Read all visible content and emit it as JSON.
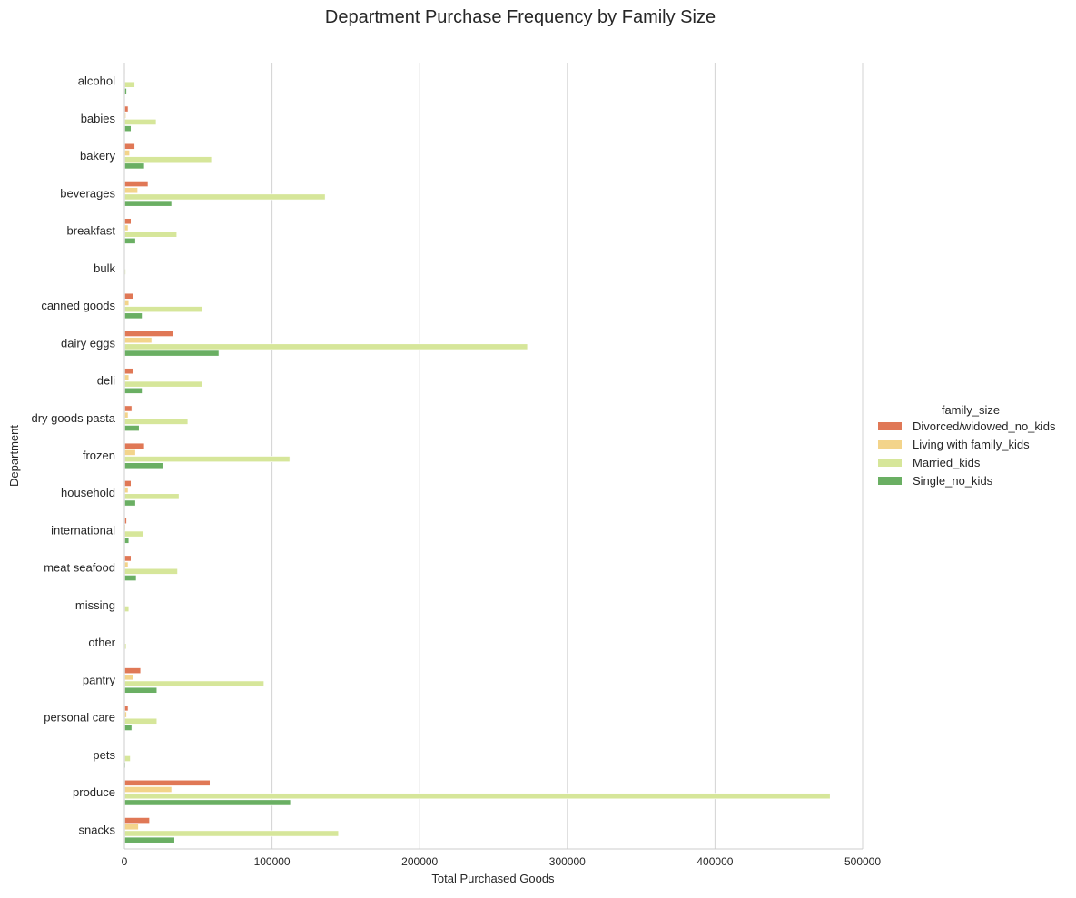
{
  "chart_data": {
    "type": "bar",
    "orientation": "horizontal",
    "title": "Department Purchase Frequency by Family Size",
    "xlabel": "Total Purchased Goods",
    "ylabel": "Department",
    "xlim": [
      0,
      500000
    ],
    "xticks": [
      0,
      100000,
      200000,
      300000,
      400000,
      500000
    ],
    "grid": "vertical",
    "legend": {
      "title": "family_size",
      "placement": "right"
    },
    "categories": [
      "alcohol",
      "babies",
      "bakery",
      "beverages",
      "breakfast",
      "bulk",
      "canned goods",
      "dairy eggs",
      "deli",
      "dry goods pasta",
      "frozen",
      "household",
      "international",
      "meat seafood",
      "missing",
      "other",
      "pantry",
      "personal care",
      "pets",
      "produce",
      "snacks"
    ],
    "series": [
      {
        "name": "Divorced/widowed_no_kids",
        "color": "#e07856",
        "values": [
          400,
          2500,
          7000,
          16000,
          4500,
          100,
          6000,
          33000,
          6000,
          5000,
          13500,
          4500,
          1500,
          4500,
          200,
          100,
          11000,
          2500,
          300,
          58000,
          17000
        ]
      },
      {
        "name": "Living with family_kids",
        "color": "#f3d48b",
        "values": [
          300,
          1000,
          3500,
          9000,
          2500,
          100,
          3000,
          18500,
          3000,
          2500,
          7500,
          2500,
          800,
          2500,
          200,
          100,
          6000,
          1500,
          200,
          32000,
          9500
        ]
      },
      {
        "name": "Married_kids",
        "color": "#d6e69a",
        "values": [
          7000,
          21500,
          59000,
          136000,
          35500,
          900,
          53000,
          273000,
          52500,
          43000,
          112000,
          37000,
          13000,
          36000,
          3000,
          1200,
          94500,
          22000,
          4000,
          478000,
          145000
        ]
      },
      {
        "name": "Single_no_kids",
        "color": "#6aaf63",
        "values": [
          1500,
          4500,
          13500,
          32000,
          7500,
          200,
          12000,
          64000,
          12000,
          10000,
          26000,
          7500,
          3000,
          8000,
          600,
          300,
          22000,
          5000,
          800,
          112500,
          34000
        ]
      }
    ]
  }
}
